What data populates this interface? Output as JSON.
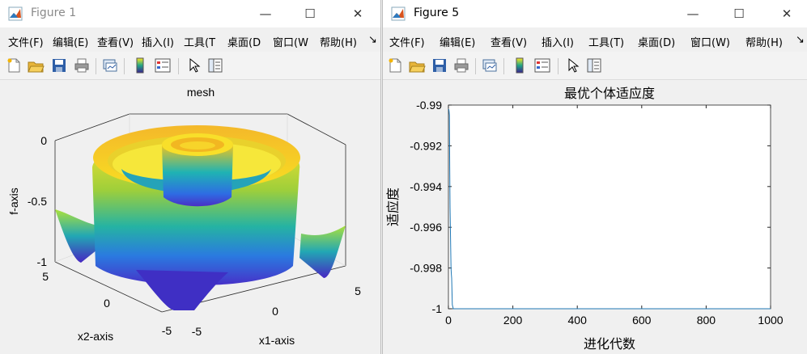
{
  "win1": {
    "title": "Figure 1",
    "menus": [
      "文件(F)",
      "编辑(E)",
      "查看(V)",
      "插入(I)",
      "工具(T",
      "桌面(D",
      "窗口(W",
      "帮助(H)"
    ],
    "overflow": "↘",
    "plot": {
      "title": "mesh",
      "zlabel": "f-axis",
      "xlabel": "x1-axis",
      "ylabel": "x2-axis",
      "zticks": [
        "0",
        "-0.5",
        "-1"
      ],
      "yticks": [
        "5",
        "0",
        "-5"
      ],
      "xticks": [
        "-5",
        "0",
        "5"
      ]
    }
  },
  "win2": {
    "title": "Figure 5",
    "menus": [
      "文件(F)",
      "编辑(E)",
      "查看(V)",
      "插入(I)",
      "工具(T)",
      "桌面(D)",
      "窗口(W)",
      "帮助(H)"
    ],
    "overflow": "↘"
  },
  "chart_data": {
    "type": "line",
    "title": "最优个体适应度",
    "xlabel": "进化代数",
    "ylabel": "适应度",
    "xlim": [
      0,
      1000
    ],
    "ylim": [
      -1,
      -0.99
    ],
    "xticks": [
      "0",
      "200",
      "400",
      "600",
      "800",
      "1000"
    ],
    "yticks": [
      "-0.99",
      "-0.992",
      "-0.994",
      "-0.996",
      "-0.998",
      "-1"
    ],
    "grid": false,
    "color": "#1f77b4",
    "series": [
      {
        "x": [
          1,
          2,
          3,
          4,
          5,
          6,
          7,
          8,
          9,
          10,
          12,
          15,
          20,
          30,
          1000
        ],
        "y": [
          -0.9902,
          -0.9903,
          -0.9905,
          -0.993,
          -0.995,
          -0.996,
          -0.997,
          -0.998,
          -0.9983,
          -0.9985,
          -0.9998,
          -1.0,
          -1.0,
          -1.0,
          -1.0
        ]
      }
    ]
  }
}
